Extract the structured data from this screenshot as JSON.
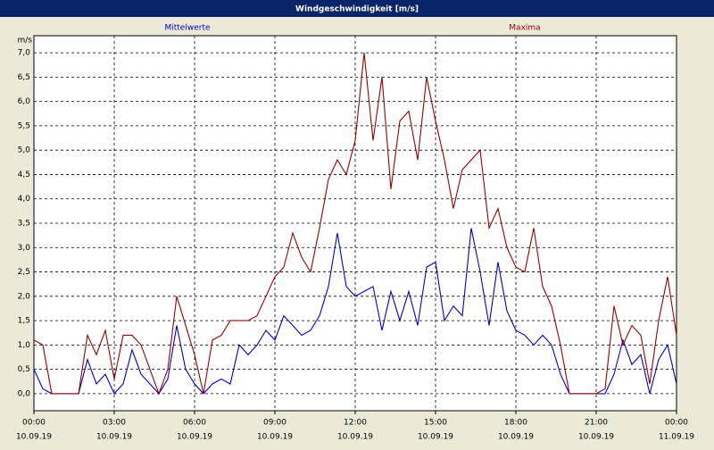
{
  "chart_data": {
    "type": "line",
    "title": "Windgeschwindigkeit [m/s]",
    "y_unit": "m/s",
    "x": [
      0,
      20,
      40,
      60,
      80,
      100,
      120,
      140,
      160,
      180,
      200,
      220,
      240,
      260,
      280,
      300,
      320,
      340,
      360,
      380,
      400,
      420,
      440,
      460,
      480,
      500,
      520,
      540,
      560,
      580,
      600,
      620,
      640,
      660,
      680,
      700,
      720,
      740,
      760,
      780,
      800,
      820,
      840,
      860,
      880,
      900,
      920,
      940,
      960,
      980,
      1000,
      1020,
      1040,
      1060,
      1080,
      1100,
      1120,
      1140,
      1160,
      1180,
      1200,
      1220,
      1240,
      1260,
      1280,
      1300,
      1320,
      1340,
      1360,
      1380,
      1400,
      1420,
      1440
    ],
    "series": [
      {
        "name": "Mittelwerte",
        "color": "#0000cc",
        "values": [
          0.5,
          0.1,
          0,
          0,
          0,
          0,
          0.7,
          0.2,
          0.4,
          0,
          0.2,
          0.9,
          0.4,
          0.2,
          0,
          0.3,
          1.4,
          0.5,
          0.2,
          0,
          0.2,
          0.3,
          0.2,
          1.0,
          0.8,
          1.0,
          1.3,
          1.1,
          1.6,
          1.4,
          1.2,
          1.3,
          1.6,
          2.2,
          3.3,
          2.2,
          2.0,
          2.1,
          2.2,
          1.3,
          2.1,
          1.5,
          2.1,
          1.4,
          2.6,
          2.7,
          1.5,
          1.8,
          1.6,
          3.4,
          2.5,
          1.4,
          2.7,
          1.7,
          1.3,
          1.2,
          1.0,
          1.2,
          1.0,
          0.4,
          0,
          0,
          0,
          0,
          0,
          0.4,
          1.1,
          0.6,
          0.8,
          0,
          0.7,
          1.0,
          0.2
        ]
      },
      {
        "name": "Maxima",
        "color": "#990000",
        "values": [
          1.1,
          1.0,
          0,
          0,
          0,
          0,
          1.2,
          0.8,
          1.3,
          0.3,
          1.2,
          1.2,
          1.0,
          0.5,
          0,
          0.5,
          2.0,
          1.4,
          0.8,
          0,
          1.1,
          1.2,
          1.5,
          1.5,
          1.5,
          1.6,
          2.0,
          2.4,
          2.6,
          3.3,
          2.8,
          2.5,
          3.4,
          4.4,
          4.8,
          4.5,
          5.2,
          7.0,
          5.2,
          6.5,
          4.2,
          5.6,
          5.8,
          4.8,
          6.5,
          5.6,
          4.8,
          3.8,
          4.6,
          4.8,
          5.0,
          3.4,
          3.8,
          3.0,
          2.6,
          2.5,
          3.4,
          2.2,
          1.8,
          1.0,
          0,
          0,
          0,
          0,
          0.1,
          1.8,
          1.0,
          1.4,
          1.2,
          0.2,
          1.5,
          2.4,
          1.2
        ]
      }
    ],
    "xlim": [
      0,
      1440
    ],
    "xticks": [
      {
        "value": 0,
        "label": "00:00"
      },
      {
        "value": 180,
        "label": "03:00"
      },
      {
        "value": 360,
        "label": "06:00"
      },
      {
        "value": 540,
        "label": "09:00"
      },
      {
        "value": 720,
        "label": "12:00"
      },
      {
        "value": 900,
        "label": "15:00"
      },
      {
        "value": 1080,
        "label": "18:00"
      },
      {
        "value": 1260,
        "label": "21:00"
      },
      {
        "value": 1440,
        "label": "00:00"
      }
    ],
    "xtick_dates": [
      "10.09.19",
      "10.09.19",
      "10.09.19",
      "10.09.19",
      "10.09.19",
      "10.09.19",
      "10.09.19",
      "10.09.19",
      "11.09.19"
    ],
    "ylim": [
      -0.35,
      7.35
    ],
    "yticks": [
      {
        "value": 0,
        "label": "0,0"
      },
      {
        "value": 0.5,
        "label": "0,5"
      },
      {
        "value": 1,
        "label": "1,0"
      },
      {
        "value": 1.5,
        "label": "1,5"
      },
      {
        "value": 2,
        "label": "2,0"
      },
      {
        "value": 2.5,
        "label": "2,5"
      },
      {
        "value": 3,
        "label": "3,0"
      },
      {
        "value": 3.5,
        "label": "3,5"
      },
      {
        "value": 4,
        "label": "4,0"
      },
      {
        "value": 4.5,
        "label": "4,5"
      },
      {
        "value": 5,
        "label": "5,0"
      },
      {
        "value": 5.5,
        "label": "5,5"
      },
      {
        "value": 6,
        "label": "6,0"
      },
      {
        "value": 6.5,
        "label": "6,5"
      },
      {
        "value": 7,
        "label": "7,0"
      }
    ],
    "grid": true
  }
}
